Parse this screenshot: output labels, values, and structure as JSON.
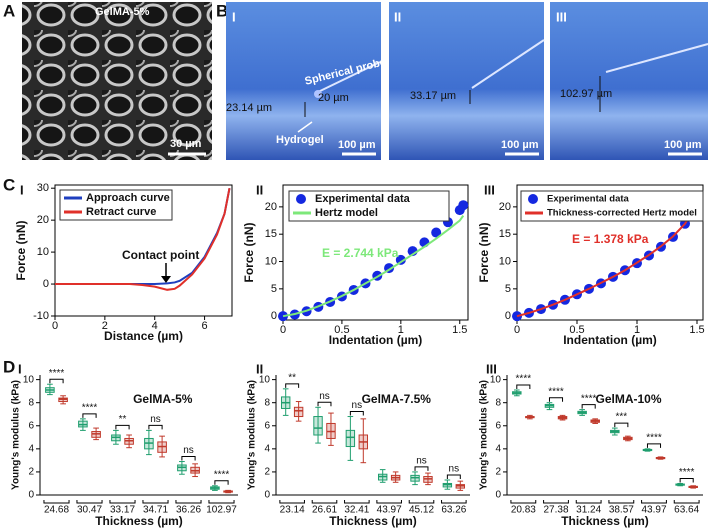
{
  "figure": {
    "panel_labels": [
      "A",
      "B",
      "C",
      "D"
    ]
  },
  "images": {
    "a": {
      "title": "GelMA-5%",
      "scale": "30 µm"
    },
    "b": {
      "labels": [
        "I",
        "II",
        "III"
      ],
      "probe": "Spherical probe",
      "probe_size": "20 µm",
      "hydrogel": "Hydrogel",
      "thickness": [
        "23.14 µm",
        "33.17 µm",
        "102.97 µm"
      ],
      "scales": [
        "100 µm",
        "100 µm",
        "100 µm"
      ]
    }
  },
  "chart_data": [
    {
      "type": "line",
      "label": "I",
      "xlabel": "Distance (µm)",
      "ylabel": "Force (nN)",
      "x": [
        0,
        0.5,
        1,
        1.5,
        2,
        2.5,
        3,
        3.5,
        4,
        4.5,
        4.8,
        5,
        5.5,
        6,
        6.5,
        6.8,
        7.0
      ],
      "series": [
        {
          "name": "Approach curve",
          "color": "#1f3fbf",
          "values": [
            0,
            0,
            0,
            0,
            0,
            0,
            0,
            0,
            0,
            0.2,
            0.5,
            1,
            3.5,
            8.5,
            16,
            22,
            30
          ]
        },
        {
          "name": "Retract curve",
          "color": "#e0302a",
          "values": [
            0,
            0,
            0,
            0,
            0,
            0,
            0,
            -0.3,
            -0.8,
            -1.8,
            -1.5,
            -0.5,
            3,
            8,
            15.5,
            22,
            30
          ]
        }
      ],
      "annotation": "Contact point",
      "xlim": [
        0,
        7.1
      ],
      "xticks": [
        0,
        2,
        4,
        6
      ],
      "ylim": [
        -10,
        31
      ],
      "yticks": [
        -10,
        0,
        10,
        20,
        30
      ],
      "grid": false
    },
    {
      "type": "scatter",
      "label": "II",
      "xlabel": "Indentation (µm)",
      "ylabel": "Force (nN)",
      "x": [
        0,
        0.1,
        0.2,
        0.3,
        0.4,
        0.5,
        0.6,
        0.7,
        0.8,
        0.9,
        1.0,
        1.1,
        1.2,
        1.3,
        1.4,
        1.5,
        1.53
      ],
      "series": [
        {
          "name": "Experimental data",
          "color": "#1428e0",
          "mode": "markers",
          "values": [
            0,
            0.3,
            0.9,
            1.7,
            2.6,
            3.6,
            4.8,
            6.0,
            7.4,
            8.8,
            10.3,
            11.9,
            13.5,
            15.3,
            17.2,
            19.4,
            20.3
          ]
        },
        {
          "name": "Hertz model",
          "color": "#7de87a",
          "mode": "line",
          "values": [
            0,
            0.4,
            1.0,
            1.8,
            2.7,
            3.7,
            4.8,
            6.0,
            7.2,
            8.5,
            9.9,
            11.3,
            12.7,
            14.2,
            15.8,
            17.5,
            18.4
          ]
        }
      ],
      "annotation": "E = 2.744 kPa",
      "annotation_color": "#7de87a",
      "xlim": [
        0,
        1.57
      ],
      "xticks": [
        0,
        0.5,
        1,
        1.5
      ],
      "ylim": [
        -0.7,
        24
      ],
      "yticks": [
        0,
        5,
        10,
        15,
        20
      ],
      "grid": false
    },
    {
      "type": "scatter",
      "label": "III",
      "xlabel": "Indentation (µm)",
      "ylabel": "Force (nN)",
      "x": [
        0,
        0.1,
        0.2,
        0.3,
        0.4,
        0.5,
        0.6,
        0.7,
        0.8,
        0.9,
        1.0,
        1.1,
        1.2,
        1.3,
        1.4,
        1.48
      ],
      "series": [
        {
          "name": "Experimental data",
          "color": "#1428e0",
          "mode": "markers",
          "values": [
            0,
            0.6,
            1.3,
            2.1,
            3,
            4,
            5,
            6,
            7.2,
            8.4,
            9.7,
            11.1,
            12.7,
            14.5,
            16.9,
            20
          ]
        },
        {
          "name": "Thickness-corrected Hertz model",
          "color": "#e0302a",
          "mode": "line",
          "values": [
            0,
            0.6,
            1.3,
            2.1,
            3,
            4,
            5,
            6.1,
            7.2,
            8.4,
            9.8,
            11.2,
            12.8,
            14.6,
            16.9,
            19.8
          ]
        }
      ],
      "annotation": "E = 1.378 kPa",
      "annotation_color": "#e0302a",
      "xlim": [
        0,
        1.55
      ],
      "xticks": [
        0,
        0.5,
        1,
        1.5
      ],
      "ylim": [
        -0.7,
        24
      ],
      "yticks": [
        0,
        5,
        10,
        15,
        20
      ],
      "grid": false
    },
    {
      "type": "box",
      "label": "I",
      "title": "GelMA-5%",
      "xlabel": "Thickness (µm)",
      "ylabel": "Young's modulus (kPa)",
      "categories": [
        "24.68",
        "30.47",
        "33.17",
        "34.71",
        "36.26",
        "102.97"
      ],
      "significance": [
        "****",
        "****",
        "**",
        "ns",
        "ns",
        "****"
      ],
      "series": [
        {
          "color": "#1f9e6e",
          "boxes": [
            [
              8.7,
              8.9,
              9.1,
              9.3,
              9.6
            ],
            [
              5.6,
              5.9,
              6.1,
              6.4,
              6.6
            ],
            [
              4.4,
              4.7,
              5.0,
              5.2,
              5.6
            ],
            [
              3.5,
              4.0,
              4.5,
              4.9,
              5.6
            ],
            [
              1.8,
              2.1,
              2.4,
              2.6,
              2.9
            ],
            [
              0.4,
              0.5,
              0.6,
              0.7,
              0.8
            ]
          ]
        },
        {
          "color": "#c0392b",
          "boxes": [
            [
              7.9,
              8.1,
              8.3,
              8.4,
              8.6
            ],
            [
              4.8,
              5.0,
              5.3,
              5.5,
              5.8
            ],
            [
              4.1,
              4.4,
              4.7,
              4.9,
              5.2
            ],
            [
              3.3,
              3.7,
              4.2,
              4.6,
              5.1
            ],
            [
              1.6,
              1.9,
              2.1,
              2.4,
              2.7
            ],
            [
              0.2,
              0.25,
              0.3,
              0.35,
              0.4
            ]
          ]
        }
      ],
      "ylim": [
        0,
        10.4
      ],
      "yticks": [
        0,
        2,
        4,
        6,
        8,
        10
      ],
      "grid": false
    },
    {
      "type": "box",
      "label": "II",
      "title": "GelMA-7.5%",
      "xlabel": "Thickness (µm)",
      "ylabel": "Young's modulus (kPa)",
      "categories": [
        "23.14",
        "26.61",
        "32.41",
        "43.97",
        "45.12",
        "63.26"
      ],
      "significance": [
        "**",
        "ns",
        "ns",
        null,
        "ns",
        "ns"
      ],
      "series": [
        {
          "color": "#1f9e6e",
          "boxes": [
            [
              6.9,
              7.5,
              8.0,
              8.5,
              9.2
            ],
            [
              4.5,
              5.2,
              5.8,
              6.8,
              7.6
            ],
            [
              3.0,
              4.2,
              5.0,
              5.6,
              6.8
            ],
            [
              1.1,
              1.3,
              1.6,
              1.8,
              2.2
            ],
            [
              0.9,
              1.2,
              1.5,
              1.7,
              2.0
            ],
            [
              0.5,
              0.7,
              0.9,
              1.0,
              1.3
            ]
          ]
        },
        {
          "color": "#c0392b",
          "boxes": [
            [
              6.4,
              6.8,
              7.3,
              7.6,
              8.1
            ],
            [
              4.3,
              4.9,
              5.5,
              6.2,
              7.1
            ],
            [
              2.8,
              4.0,
              4.6,
              5.2,
              6.6
            ],
            [
              1.1,
              1.3,
              1.5,
              1.7,
              2.0
            ],
            [
              0.9,
              1.1,
              1.4,
              1.6,
              1.9
            ],
            [
              0.4,
              0.6,
              0.8,
              0.9,
              1.2
            ]
          ]
        }
      ],
      "ylim": [
        0,
        10.4
      ],
      "yticks": [
        0,
        2,
        4,
        6,
        8,
        10
      ],
      "grid": false
    },
    {
      "type": "box",
      "label": "III",
      "title": "GelMA-10%",
      "xlabel": "Thickness (µm)",
      "ylabel": "Young's modulus (kPa)",
      "categories": [
        "20.83",
        "27.38",
        "31.24",
        "38.57",
        "43.97",
        "63.64"
      ],
      "significance": [
        "****",
        "****",
        "****",
        "***",
        "****",
        "****"
      ],
      "series": [
        {
          "color": "#1f9e6e",
          "boxes": [
            [
              8.6,
              8.75,
              8.85,
              8.95,
              9.1
            ],
            [
              7.4,
              7.6,
              7.75,
              7.85,
              8.0
            ],
            [
              6.9,
              7.05,
              7.15,
              7.25,
              7.4
            ],
            [
              5.2,
              5.4,
              5.5,
              5.6,
              5.8
            ],
            [
              3.8,
              3.85,
              3.9,
              3.95,
              4.0
            ],
            [
              0.8,
              0.85,
              0.9,
              0.95,
              1.0
            ]
          ]
        },
        {
          "color": "#c0392b",
          "boxes": [
            [
              6.6,
              6.7,
              6.75,
              6.8,
              6.9
            ],
            [
              6.5,
              6.6,
              6.7,
              6.8,
              6.9
            ],
            [
              6.2,
              6.3,
              6.4,
              6.5,
              6.6
            ],
            [
              4.7,
              4.8,
              4.9,
              5.0,
              5.1
            ],
            [
              3.1,
              3.15,
              3.2,
              3.25,
              3.3
            ],
            [
              0.6,
              0.65,
              0.7,
              0.75,
              0.8
            ]
          ]
        }
      ],
      "ylim": [
        0,
        10.4
      ],
      "yticks": [
        0,
        2,
        4,
        6,
        8,
        10
      ],
      "grid": false
    }
  ]
}
